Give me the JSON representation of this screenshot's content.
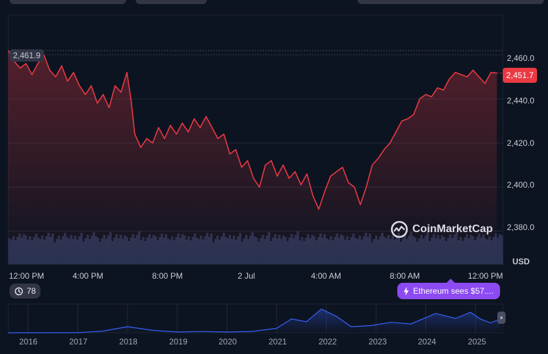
{
  "chart_data": {
    "type": "area",
    "title": "",
    "currency_unit": "USD",
    "y_ticks": [
      "2,460.0",
      "2,440.0",
      "2,420.0",
      "2,400.0",
      "2,380.0"
    ],
    "y_tick_values": [
      2460,
      2440,
      2420,
      2400,
      2380
    ],
    "ylim": [
      2365,
      2478
    ],
    "x_ticks": [
      "12:00 PM",
      "4:00 PM",
      "8:00 PM",
      "2 Jul",
      "4:00 AM",
      "8:00 AM",
      "12:00 PM"
    ],
    "x_tick_hours": [
      0,
      4,
      8,
      12,
      16,
      20,
      24
    ],
    "xlim_hours": [
      0,
      25
    ],
    "open_price": 2461.9,
    "open_price_label": "2,461.9",
    "last_price": 2451.7,
    "last_price_label": "2,451.7",
    "color": "#ea3943",
    "price_series": [
      [
        0.0,
        2461.9
      ],
      [
        0.3,
        2457
      ],
      [
        0.6,
        2454
      ],
      [
        0.9,
        2456
      ],
      [
        1.2,
        2451
      ],
      [
        1.5,
        2456
      ],
      [
        1.8,
        2460
      ],
      [
        2.1,
        2453
      ],
      [
        2.4,
        2450
      ],
      [
        2.7,
        2455
      ],
      [
        3.0,
        2448
      ],
      [
        3.3,
        2452
      ],
      [
        3.6,
        2446
      ],
      [
        3.9,
        2442
      ],
      [
        4.2,
        2446
      ],
      [
        4.5,
        2438
      ],
      [
        4.8,
        2442
      ],
      [
        5.1,
        2436
      ],
      [
        5.4,
        2446
      ],
      [
        5.7,
        2443
      ],
      [
        6.0,
        2452
      ],
      [
        6.2,
        2440
      ],
      [
        6.4,
        2424
      ],
      [
        6.7,
        2418
      ],
      [
        7.0,
        2422
      ],
      [
        7.3,
        2420
      ],
      [
        7.6,
        2427
      ],
      [
        7.9,
        2422
      ],
      [
        8.2,
        2428
      ],
      [
        8.5,
        2424
      ],
      [
        8.8,
        2429
      ],
      [
        9.1,
        2425
      ],
      [
        9.4,
        2431
      ],
      [
        9.7,
        2427
      ],
      [
        10.0,
        2432
      ],
      [
        10.3,
        2427
      ],
      [
        10.6,
        2422
      ],
      [
        10.9,
        2424
      ],
      [
        11.2,
        2415
      ],
      [
        11.5,
        2417
      ],
      [
        11.8,
        2409
      ],
      [
        12.1,
        2412
      ],
      [
        12.4,
        2404
      ],
      [
        12.7,
        2400
      ],
      [
        13.0,
        2410
      ],
      [
        13.3,
        2412
      ],
      [
        13.6,
        2405
      ],
      [
        13.9,
        2410
      ],
      [
        14.2,
        2404
      ],
      [
        14.5,
        2407
      ],
      [
        14.8,
        2401
      ],
      [
        15.1,
        2406
      ],
      [
        15.4,
        2396
      ],
      [
        15.7,
        2390
      ],
      [
        16.0,
        2398
      ],
      [
        16.3,
        2405
      ],
      [
        16.6,
        2407
      ],
      [
        16.9,
        2409
      ],
      [
        17.2,
        2402
      ],
      [
        17.5,
        2400
      ],
      [
        17.8,
        2392
      ],
      [
        18.1,
        2400
      ],
      [
        18.4,
        2410
      ],
      [
        18.7,
        2413
      ],
      [
        19.0,
        2417
      ],
      [
        19.3,
        2420
      ],
      [
        19.6,
        2425
      ],
      [
        19.9,
        2430
      ],
      [
        20.2,
        2431
      ],
      [
        20.5,
        2433
      ],
      [
        20.8,
        2440
      ],
      [
        21.1,
        2442
      ],
      [
        21.4,
        2441
      ],
      [
        21.7,
        2445
      ],
      [
        22.0,
        2444
      ],
      [
        22.3,
        2449
      ],
      [
        22.6,
        2452
      ],
      [
        22.9,
        2451
      ],
      [
        23.2,
        2450
      ],
      [
        23.5,
        2453
      ],
      [
        23.8,
        2450
      ],
      [
        24.1,
        2447
      ],
      [
        24.4,
        2452
      ],
      [
        24.7,
        2451.7
      ]
    ],
    "history_x_ticks": [
      "2016",
      "2017",
      "2018",
      "2019",
      "2020",
      "2021",
      "2022",
      "2023",
      "2024",
      "2025"
    ],
    "history_series": [
      [
        2015.6,
        1
      ],
      [
        2016.5,
        10
      ],
      [
        2017.0,
        10
      ],
      [
        2017.5,
        300
      ],
      [
        2018.0,
        1100
      ],
      [
        2018.5,
        450
      ],
      [
        2019.0,
        130
      ],
      [
        2019.5,
        220
      ],
      [
        2020.0,
        140
      ],
      [
        2020.5,
        230
      ],
      [
        2021.0,
        800
      ],
      [
        2021.3,
        2500
      ],
      [
        2021.6,
        2000
      ],
      [
        2021.9,
        4300
      ],
      [
        2022.2,
        3000
      ],
      [
        2022.5,
        1100
      ],
      [
        2022.9,
        1300
      ],
      [
        2023.3,
        1900
      ],
      [
        2023.7,
        1600
      ],
      [
        2024.2,
        3500
      ],
      [
        2024.6,
        2600
      ],
      [
        2024.9,
        3700
      ],
      [
        2025.1,
        2500
      ],
      [
        2025.3,
        1800
      ],
      [
        2025.5,
        2461
      ]
    ],
    "history_xlim": [
      2015.6,
      2025.55
    ],
    "history_ylim": [
      0,
      5200
    ],
    "volume_bars": 240,
    "grid": true
  },
  "watermark": {
    "text": "CoinMarketCap"
  },
  "history_badge": {
    "count": "78"
  },
  "event_badge": {
    "text": "Ethereum sees $57...."
  }
}
